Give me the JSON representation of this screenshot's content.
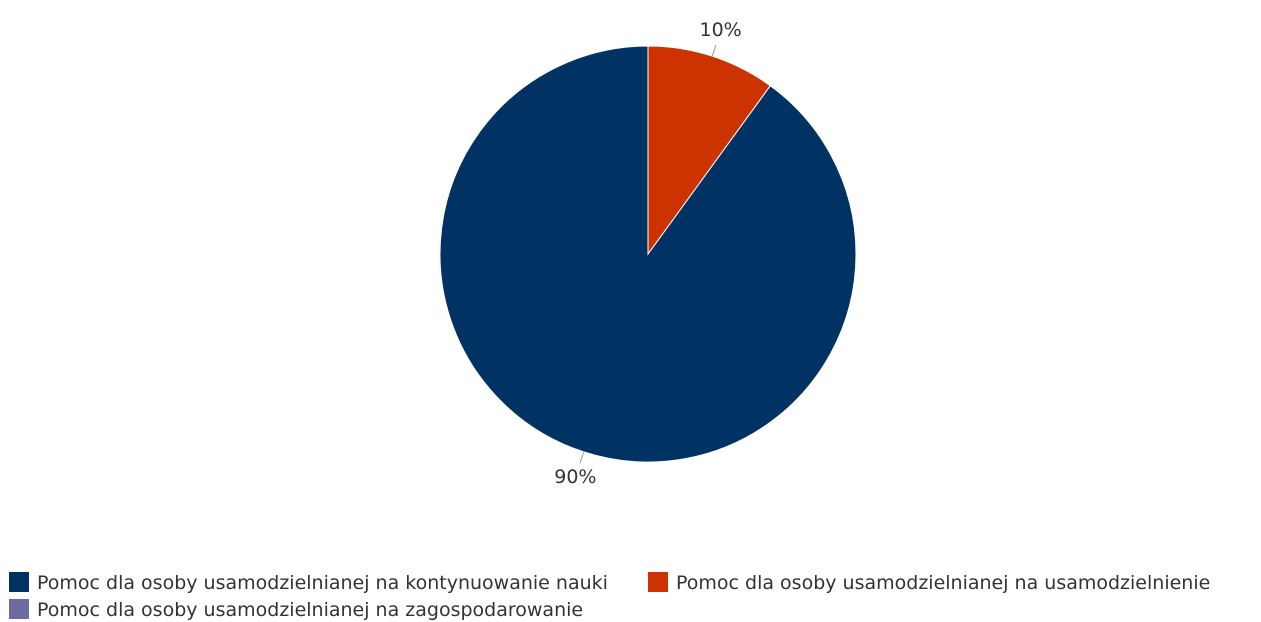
{
  "chart_data": {
    "type": "pie",
    "start_angle_deg": 0,
    "direction": "counterclockwise",
    "series": [
      {
        "name": "Pomoc dla osoby usamodzielnianej na kontynuowanie nauki",
        "value": 90,
        "label": "90%",
        "color": "#003264"
      },
      {
        "name": "Pomoc dla osoby usamodzielnianej na usamodzielnienie",
        "value": 10,
        "label": "10%",
        "color": "#CC3300"
      },
      {
        "name": "Pomoc dla osoby usamodzielnianej na zagospodarowanie",
        "value": 0,
        "label": "",
        "color": "#6B6BA0"
      }
    ],
    "legend_position": "bottom"
  }
}
